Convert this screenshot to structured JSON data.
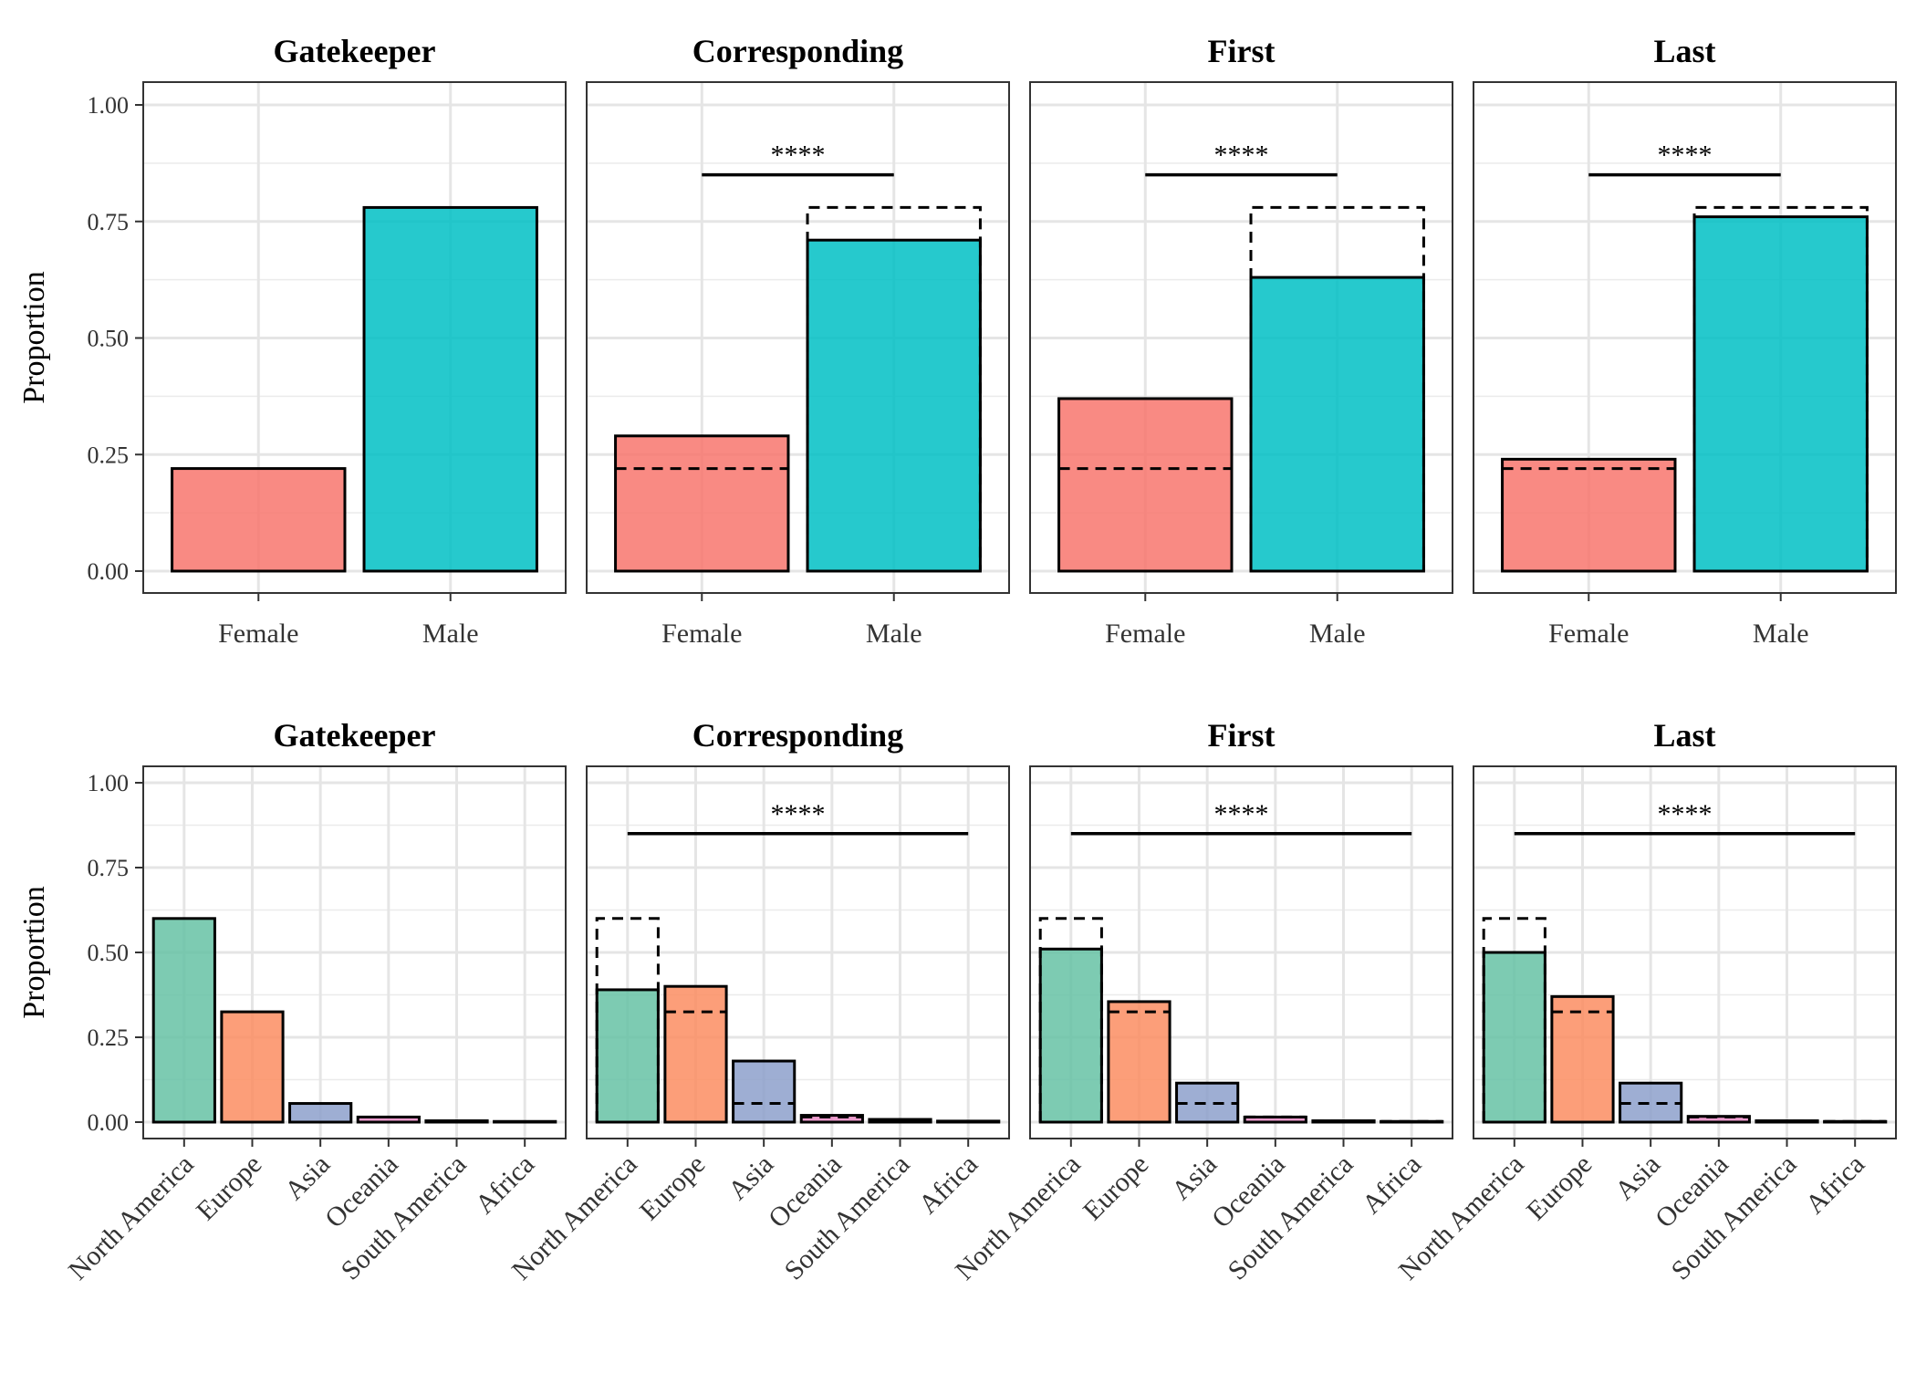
{
  "figure": {
    "ylabel": "Proportion",
    "yticks": [
      "0.00",
      "0.25",
      "0.50",
      "0.75",
      "1.00"
    ],
    "colors": {
      "Female": "#F8766D",
      "Male": "#00BFC4",
      "North America": "#66C2A5",
      "Europe": "#FC8D62",
      "Asia": "#8DA0CB",
      "Oceania": "#E78AC3",
      "South America": "#A6D854",
      "Africa": "#FFD92F"
    }
  },
  "chart_data": [
    {
      "type": "bar",
      "row": "gender",
      "title": "Gatekeeper",
      "ylabel": "Proportion",
      "ylim": [
        0,
        1
      ],
      "categories": [
        "Female",
        "Male"
      ],
      "values": [
        0.22,
        0.78
      ],
      "reference": null,
      "significance": null
    },
    {
      "type": "bar",
      "row": "gender",
      "title": "Corresponding",
      "ylim": [
        0,
        1
      ],
      "categories": [
        "Female",
        "Male"
      ],
      "values": [
        0.29,
        0.71
      ],
      "reference": [
        0.22,
        0.78
      ],
      "significance": "****"
    },
    {
      "type": "bar",
      "row": "gender",
      "title": "First",
      "ylim": [
        0,
        1
      ],
      "categories": [
        "Female",
        "Male"
      ],
      "values": [
        0.37,
        0.63
      ],
      "reference": [
        0.22,
        0.78
      ],
      "significance": "****"
    },
    {
      "type": "bar",
      "row": "gender",
      "title": "Last",
      "ylim": [
        0,
        1
      ],
      "categories": [
        "Female",
        "Male"
      ],
      "values": [
        0.24,
        0.76
      ],
      "reference": [
        0.22,
        0.78
      ],
      "significance": "****"
    },
    {
      "type": "bar",
      "row": "continent",
      "title": "Gatekeeper",
      "ylabel": "Proportion",
      "ylim": [
        0,
        1
      ],
      "categories": [
        "North America",
        "Europe",
        "Asia",
        "Oceania",
        "South America",
        "Africa"
      ],
      "values": [
        0.6,
        0.325,
        0.055,
        0.015,
        0.004,
        0.002
      ],
      "reference": null,
      "significance": null
    },
    {
      "type": "bar",
      "row": "continent",
      "title": "Corresponding",
      "ylim": [
        0,
        1
      ],
      "categories": [
        "North America",
        "Europe",
        "Asia",
        "Oceania",
        "South America",
        "Africa"
      ],
      "values": [
        0.39,
        0.4,
        0.18,
        0.02,
        0.008,
        0.003
      ],
      "reference": [
        0.6,
        0.325,
        0.055,
        0.015,
        0.004,
        0.002
      ],
      "significance": "****"
    },
    {
      "type": "bar",
      "row": "continent",
      "title": "First",
      "ylim": [
        0,
        1
      ],
      "categories": [
        "North America",
        "Europe",
        "Asia",
        "Oceania",
        "South America",
        "Africa"
      ],
      "values": [
        0.51,
        0.355,
        0.115,
        0.015,
        0.004,
        0.002
      ],
      "reference": [
        0.6,
        0.325,
        0.055,
        0.015,
        0.004,
        0.002
      ],
      "significance": "****"
    },
    {
      "type": "bar",
      "row": "continent",
      "title": "Last",
      "ylim": [
        0,
        1
      ],
      "categories": [
        "North America",
        "Europe",
        "Asia",
        "Oceania",
        "South America",
        "Africa"
      ],
      "values": [
        0.5,
        0.37,
        0.115,
        0.017,
        0.004,
        0.002
      ],
      "reference": [
        0.6,
        0.325,
        0.055,
        0.015,
        0.004,
        0.002
      ],
      "significance": "****"
    }
  ]
}
